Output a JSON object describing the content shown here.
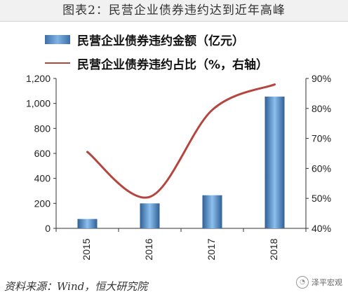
{
  "header": {
    "title": "图表2：民营企业债券违约达到近年高峰"
  },
  "legend": {
    "bar_label": "民营企业债券违约金额（亿元）",
    "line_label": "民营企业债券违约占比（%，右轴）"
  },
  "source": "资料来源：Wind，恒大研究院",
  "watermark": {
    "text": "泽平宏观"
  },
  "colors": {
    "bar": "#4f8cc9",
    "line": "#b5453f",
    "axis": "#333333"
  },
  "chart_data": {
    "type": "bar+line",
    "categories": [
      "2015",
      "2016",
      "2017",
      "2018"
    ],
    "series": [
      {
        "name": "民营企业债券违约金额（亿元）",
        "type": "bar",
        "axis": "left",
        "values": [
          75,
          200,
          265,
          1055
        ]
      },
      {
        "name": "民营企业债券违约占比（%，右轴）",
        "type": "line",
        "axis": "right",
        "values": [
          65.5,
          50.5,
          79.5,
          88
        ]
      }
    ],
    "yleft": {
      "lim": [
        0,
        1200
      ],
      "ticks": [
        "0",
        "200",
        "400",
        "600",
        "800",
        "1,000",
        "1,200"
      ]
    },
    "yright": {
      "lim": [
        40,
        90
      ],
      "ticks": [
        "40%",
        "50%",
        "60%",
        "70%",
        "80%",
        "90%"
      ]
    },
    "grid": false,
    "legend_position": "top"
  }
}
